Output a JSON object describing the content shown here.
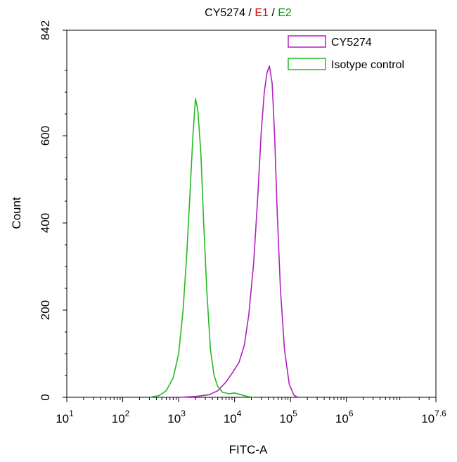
{
  "chart_data": {
    "type": "area",
    "title_parts": [
      {
        "text": "CY5274",
        "color": "#000000"
      },
      {
        "text": " / ",
        "color": "#000000"
      },
      {
        "text": "E1",
        "color": "#cc0000"
      },
      {
        "text": " / ",
        "color": "#000000"
      },
      {
        "text": "E2",
        "color": "#009900"
      }
    ],
    "xlabel": "FITC-A",
    "ylabel": "Count",
    "x_scale": "log",
    "xlim": [
      10,
      39810717
    ],
    "ylim": [
      0,
      842
    ],
    "y_ticks": [
      0,
      200,
      400,
      600,
      842
    ],
    "x_ticks": [
      {
        "value": 10,
        "base": "10",
        "exp": "1"
      },
      {
        "value": 100,
        "base": "10",
        "exp": "2"
      },
      {
        "value": 1000,
        "base": "10",
        "exp": "3"
      },
      {
        "value": 10000,
        "base": "10",
        "exp": "4"
      },
      {
        "value": 100000,
        "base": "10",
        "exp": "5"
      },
      {
        "value": 1000000,
        "base": "10",
        "exp": "6"
      },
      {
        "value": 39810717,
        "base": "10",
        "exp": "7.6"
      }
    ],
    "legend_position": "top-right",
    "grid": false,
    "series": [
      {
        "name": "CY5274",
        "color": "#b020c0",
        "x": [
          600,
          1000,
          2000,
          3500,
          5000,
          7000,
          9000,
          12000,
          15000,
          18000,
          22000,
          26000,
          30000,
          34000,
          38000,
          42000,
          47000,
          52000,
          58000,
          66000,
          78000,
          95000,
          115000,
          135000
        ],
        "y": [
          0,
          0,
          2,
          6,
          15,
          35,
          55,
          80,
          120,
          190,
          310,
          460,
          610,
          700,
          745,
          760,
          720,
          600,
          420,
          250,
          110,
          30,
          5,
          0
        ]
      },
      {
        "name": "Isotype control",
        "color": "#22bb22",
        "x": [
          300,
          450,
          600,
          800,
          1000,
          1200,
          1400,
          1600,
          1800,
          2000,
          2200,
          2500,
          2800,
          3200,
          3700,
          4300,
          5000,
          6000,
          8000,
          10000,
          13000,
          17000,
          22000
        ],
        "y": [
          0,
          4,
          15,
          45,
          100,
          200,
          330,
          470,
          600,
          685,
          660,
          560,
          400,
          240,
          110,
          50,
          25,
          12,
          8,
          10,
          6,
          2,
          0
        ]
      }
    ]
  }
}
